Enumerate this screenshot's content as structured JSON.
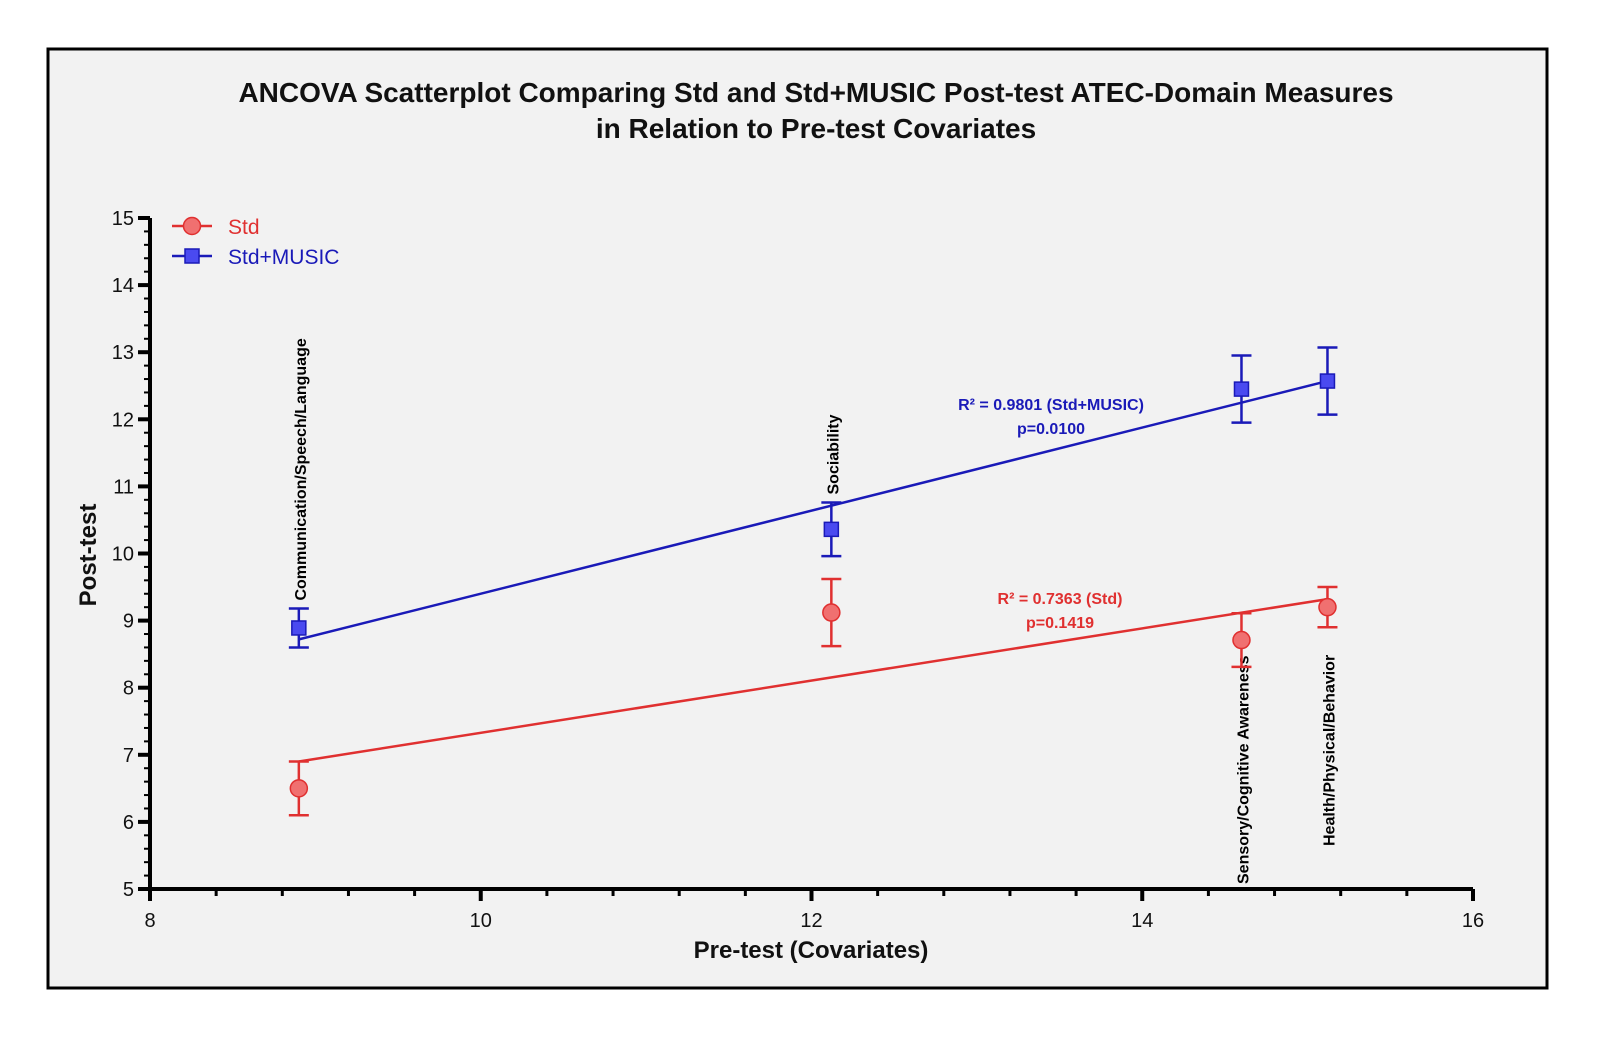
{
  "chart_data": {
    "type": "scatter",
    "title": "ANCOVA Scatterplot Comparing Std and Std+MUSIC Post-test ATEC-Domain Measures",
    "subtitle": "in Relation to Pre-test Covariates",
    "xlabel": "Pre-test (Covariates)",
    "ylabel": "Post-test",
    "xlim": [
      8,
      16
    ],
    "ylim": [
      5,
      15
    ],
    "xticks": [
      "8",
      "10",
      "12",
      "14",
      "16"
    ],
    "yticks": [
      "5",
      "6",
      "7",
      "8",
      "9",
      "10",
      "11",
      "12",
      "13",
      "14",
      "15"
    ],
    "legend_position": "top-left",
    "categories": [
      "Communication/Speech/Language",
      "Sociability",
      "Sensory/Cognitive Awareness",
      "Health/Physical/Behavior"
    ],
    "x": [
      8.9,
      12.12,
      14.6,
      15.12
    ],
    "series": [
      {
        "name": "Std",
        "color": "#e03030",
        "fill": "#f07070",
        "marker": "circle",
        "values": [
          6.5,
          9.12,
          8.71,
          9.2
        ],
        "err_low": [
          6.1,
          8.62,
          8.31,
          8.9
        ],
        "err_high": [
          6.9,
          9.62,
          9.11,
          9.5
        ],
        "fit": [
          [
            8.9,
            6.9
          ],
          [
            15.12,
            9.32
          ]
        ],
        "annotation_r2": "R² = 0.7363 (Std)",
        "annotation_p": "p=0.1419"
      },
      {
        "name": "Std+MUSIC",
        "color": "#1a1ab8",
        "fill": "#4a4af0",
        "marker": "square",
        "values": [
          8.89,
          10.36,
          12.45,
          12.57
        ],
        "err_low": [
          8.6,
          9.96,
          11.95,
          12.07
        ],
        "err_high": [
          9.18,
          10.76,
          12.95,
          13.07
        ],
        "fit": [
          [
            8.9,
            8.72
          ],
          [
            15.12,
            12.57
          ]
        ],
        "annotation_r2": "R² = 0.9801 (Std+MUSIC)",
        "annotation_p": "p=0.0100"
      }
    ]
  }
}
